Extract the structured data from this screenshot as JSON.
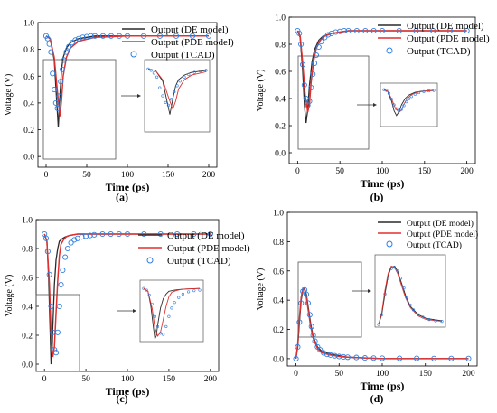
{
  "chart_data": [
    {
      "panel": "(a)",
      "type": "line",
      "xlabel": "Time (ps)",
      "ylabel": "Voltage (V)",
      "xlim": [
        -10,
        210
      ],
      "ylim": [
        -0.08,
        1.0
      ],
      "xticks": [
        "0",
        "50",
        "100",
        "150",
        "200"
      ],
      "yticks": [
        "0.0",
        "0.2",
        "0.4",
        "0.6",
        "0.8",
        "1.0"
      ],
      "legend": [
        "Output (DE model)",
        "Output (PDE model)",
        "Output (TCAD)"
      ],
      "legend_position": "right",
      "series": [
        {
          "name": "Output (DE model)",
          "x": [
            0,
            5,
            10,
            13,
            15,
            17,
            19,
            21,
            25,
            30,
            40,
            60,
            100,
            150,
            200
          ],
          "y": [
            0.9,
            0.88,
            0.72,
            0.42,
            0.22,
            0.45,
            0.65,
            0.74,
            0.81,
            0.85,
            0.88,
            0.9,
            0.9,
            0.9,
            0.9
          ]
        },
        {
          "name": "Output (PDE model)",
          "x": [
            0,
            5,
            10,
            14,
            17,
            19,
            21,
            25,
            30,
            40,
            60,
            100,
            150,
            200
          ],
          "y": [
            0.9,
            0.88,
            0.74,
            0.48,
            0.3,
            0.42,
            0.6,
            0.74,
            0.81,
            0.86,
            0.89,
            0.9,
            0.9,
            0.9
          ]
        },
        {
          "name": "Output (TCAD)",
          "x": [
            0,
            2,
            4,
            6,
            8,
            10,
            12,
            14,
            16,
            18,
            20,
            22,
            25,
            28,
            32,
            36,
            40,
            45,
            50,
            55,
            60,
            70,
            80,
            90,
            100,
            120,
            140,
            160,
            180,
            200
          ],
          "y": [
            0.9,
            0.88,
            0.84,
            0.78,
            0.62,
            0.5,
            0.4,
            0.36,
            0.45,
            0.56,
            0.65,
            0.72,
            0.78,
            0.82,
            0.85,
            0.87,
            0.88,
            0.89,
            0.895,
            0.9,
            0.9,
            0.9,
            0.9,
            0.9,
            0.9,
            0.9,
            0.9,
            0.9,
            0.9,
            0.9
          ]
        }
      ]
    },
    {
      "panel": "(b)",
      "type": "line",
      "xlabel": "Time (ps)",
      "ylabel": "Voltage (V)",
      "xlim": [
        -10,
        210
      ],
      "ylim": [
        -0.08,
        1.0
      ],
      "xticks": [
        "0",
        "50",
        "100",
        "150",
        "200"
      ],
      "yticks": [
        "0.0",
        "0.2",
        "0.4",
        "0.6",
        "0.8",
        "1.0"
      ],
      "legend": [
        "Output (DE model)",
        "Output (PDE model)",
        "Output (TCAD)"
      ],
      "legend_position": "right",
      "series": [
        {
          "name": "Output (DE model)",
          "x": [
            0,
            3,
            6,
            8,
            10,
            12,
            14,
            17,
            20,
            25,
            30,
            40,
            60,
            100,
            150,
            200
          ],
          "y": [
            0.9,
            0.85,
            0.6,
            0.35,
            0.22,
            0.32,
            0.5,
            0.67,
            0.76,
            0.83,
            0.86,
            0.88,
            0.9,
            0.9,
            0.9,
            0.9
          ]
        },
        {
          "name": "Output (PDE model)",
          "x": [
            0,
            3,
            6,
            9,
            12,
            14,
            16,
            19,
            22,
            27,
            32,
            40,
            60,
            100,
            150,
            200
          ],
          "y": [
            0.9,
            0.86,
            0.66,
            0.42,
            0.3,
            0.36,
            0.52,
            0.68,
            0.77,
            0.83,
            0.86,
            0.88,
            0.9,
            0.9,
            0.9,
            0.9
          ]
        },
        {
          "name": "Output (TCAD)",
          "x": [
            0,
            2,
            4,
            6,
            8,
            10,
            12,
            14,
            16,
            18,
            20,
            22,
            25,
            28,
            32,
            36,
            40,
            45,
            50,
            55,
            60,
            70,
            80,
            90,
            100,
            120,
            140,
            160,
            180,
            200
          ],
          "y": [
            0.9,
            0.88,
            0.8,
            0.65,
            0.5,
            0.4,
            0.35,
            0.38,
            0.48,
            0.58,
            0.66,
            0.72,
            0.78,
            0.82,
            0.85,
            0.87,
            0.88,
            0.89,
            0.895,
            0.9,
            0.9,
            0.9,
            0.9,
            0.9,
            0.9,
            0.9,
            0.9,
            0.9,
            0.9,
            0.9
          ]
        }
      ]
    },
    {
      "panel": "(c)",
      "type": "line",
      "xlabel": "Time (ps)",
      "ylabel": "Voltage (V)",
      "xlim": [
        -10,
        210
      ],
      "ylim": [
        -0.05,
        1.0
      ],
      "xticks": [
        "0",
        "50",
        "100",
        "150",
        "200"
      ],
      "yticks": [
        "0.0",
        "0.2",
        "0.4",
        "0.6",
        "0.8",
        "1.0"
      ],
      "legend": [
        "Output (DE model)",
        "Output (PDE model)",
        "Output (TCAD)"
      ],
      "legend_position": "right",
      "series": [
        {
          "name": "Output (DE model)",
          "x": [
            0,
            3,
            5,
            7,
            8,
            9,
            10,
            12,
            14,
            16,
            18,
            20,
            22,
            25,
            30,
            40,
            60,
            100,
            150,
            200
          ],
          "y": [
            0.9,
            0.85,
            0.6,
            0.2,
            0.0,
            0.05,
            0.25,
            0.55,
            0.72,
            0.8,
            0.85,
            0.86,
            0.87,
            0.88,
            0.89,
            0.9,
            0.9,
            0.9,
            0.9,
            0.9
          ]
        },
        {
          "name": "Output (PDE model)",
          "x": [
            0,
            3,
            6,
            8,
            10,
            12,
            14,
            16,
            18,
            20,
            23,
            26,
            30,
            40,
            60,
            100,
            150,
            200
          ],
          "y": [
            0.9,
            0.85,
            0.55,
            0.2,
            0.05,
            0.12,
            0.35,
            0.58,
            0.75,
            0.83,
            0.86,
            0.88,
            0.89,
            0.9,
            0.9,
            0.9,
            0.9,
            0.9
          ]
        },
        {
          "name": "Output (TCAD)",
          "x": [
            0,
            2,
            4,
            6,
            8,
            10,
            12,
            14,
            16,
            18,
            20,
            22,
            25,
            28,
            32,
            36,
            40,
            45,
            50,
            55,
            60,
            70,
            80,
            90,
            100,
            120,
            140,
            160,
            180,
            200
          ],
          "y": [
            0.9,
            0.87,
            0.78,
            0.62,
            0.4,
            0.22,
            0.1,
            0.08,
            0.22,
            0.4,
            0.55,
            0.65,
            0.74,
            0.8,
            0.84,
            0.86,
            0.87,
            0.88,
            0.885,
            0.89,
            0.895,
            0.9,
            0.9,
            0.9,
            0.9,
            0.9,
            0.9,
            0.9,
            0.9,
            0.9
          ]
        }
      ]
    },
    {
      "panel": "(d)",
      "type": "line",
      "xlabel": "Time (ps)",
      "ylabel": "Voltage (V)",
      "xlim": [
        -10,
        210
      ],
      "ylim": [
        -0.05,
        1.0
      ],
      "xticks": [
        "0",
        "50",
        "100",
        "150",
        "200"
      ],
      "yticks": [
        "0.0",
        "0.2",
        "0.4",
        "0.6",
        "0.8",
        "1.0"
      ],
      "legend": [
        "Output (DE model)",
        "Output (PDE model)",
        "Output (TCAD)"
      ],
      "legend_position": "top-right",
      "series": [
        {
          "name": "Output (DE model)",
          "x": [
            0,
            2,
            4,
            6,
            8,
            10,
            12,
            14,
            17,
            20,
            25,
            30,
            40,
            50,
            60,
            80,
            100,
            150,
            200
          ],
          "y": [
            0.0,
            0.08,
            0.25,
            0.4,
            0.47,
            0.48,
            0.44,
            0.36,
            0.24,
            0.15,
            0.08,
            0.05,
            0.03,
            0.02,
            0.01,
            0.005,
            0.0,
            0.0,
            0.0
          ]
        },
        {
          "name": "Output (PDE model)",
          "x": [
            0,
            2,
            4,
            6,
            8,
            10,
            12,
            14,
            17,
            20,
            25,
            30,
            40,
            50,
            60,
            80,
            100,
            150,
            200
          ],
          "y": [
            0.0,
            0.1,
            0.28,
            0.42,
            0.48,
            0.47,
            0.42,
            0.34,
            0.22,
            0.14,
            0.07,
            0.04,
            0.025,
            0.015,
            0.01,
            0.005,
            0.0,
            0.0,
            0.0
          ]
        },
        {
          "name": "Output (TCAD)",
          "x": [
            0,
            2,
            4,
            6,
            8,
            10,
            12,
            14,
            16,
            18,
            20,
            22,
            25,
            28,
            32,
            36,
            40,
            45,
            50,
            55,
            60,
            70,
            80,
            90,
            100,
            120,
            140,
            160,
            180,
            200
          ],
          "y": [
            0.0,
            0.08,
            0.25,
            0.38,
            0.46,
            0.47,
            0.44,
            0.38,
            0.3,
            0.22,
            0.16,
            0.12,
            0.08,
            0.06,
            0.04,
            0.03,
            0.025,
            0.02,
            0.015,
            0.012,
            0.01,
            0.008,
            0.005,
            0.004,
            0.003,
            0.002,
            0.002,
            0.001,
            0.001,
            0.001
          ]
        }
      ]
    }
  ],
  "colors": {
    "de_model": "#2a2a2a",
    "pde_model": "#e03030",
    "tcad": "#2f7fe0",
    "axis": "#000000",
    "inset_border": "#555555"
  }
}
